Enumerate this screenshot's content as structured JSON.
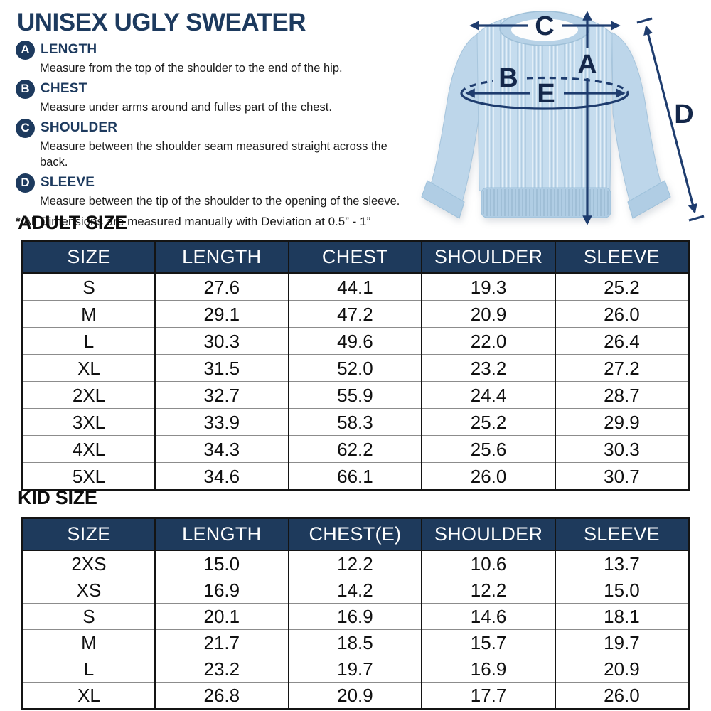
{
  "title": "UNISEX UGLY SWEATER",
  "colors": {
    "navy_accent": "#1d3a5e",
    "table_header_bg": "#1e3a5c",
    "table_border": "#141414",
    "row_divider": "#8c8c8c",
    "sweater_blue": "#c5dcee",
    "sweater_band_blue": "#b0cde4",
    "arrow_navy": "#1e3c6e"
  },
  "legend": {
    "items": [
      {
        "key": "A",
        "label": "LENGTH",
        "desc": "Measure from the top of the shoulder to the end of the hip."
      },
      {
        "key": "B",
        "label": "CHEST",
        "desc": "Measure under arms around and fulles part of the chest."
      },
      {
        "key": "C",
        "label": "SHOULDER",
        "desc": "Measure between the shoulder seam measured straight across the back."
      },
      {
        "key": "D",
        "label": "SLEEVE",
        "desc": "Measure between the tip of the shoulder to the opening of the sleeve."
      }
    ],
    "note_star": "*",
    "note_text": "All Dimensions are measured manually with Deviation at 0.5” - 1”"
  },
  "diagram": {
    "label_a": "A",
    "label_b": "B",
    "label_c": "C",
    "label_d": "D",
    "label_e": "E"
  },
  "adult": {
    "heading": "ADULT SIZE",
    "columns": [
      "SIZE",
      "LENGTH",
      "CHEST",
      "SHOULDER",
      "SLEEVE"
    ],
    "rows": [
      [
        "S",
        "27.6",
        "44.1",
        "19.3",
        "25.2"
      ],
      [
        "M",
        "29.1",
        "47.2",
        "20.9",
        "26.0"
      ],
      [
        "L",
        "30.3",
        "49.6",
        "22.0",
        "26.4"
      ],
      [
        "XL",
        "31.5",
        "52.0",
        "23.2",
        "27.2"
      ],
      [
        "2XL",
        "32.7",
        "55.9",
        "24.4",
        "28.7"
      ],
      [
        "3XL",
        "33.9",
        "58.3",
        "25.2",
        "29.9"
      ],
      [
        "4XL",
        "34.3",
        "62.2",
        "25.6",
        "30.3"
      ],
      [
        "5XL",
        "34.6",
        "66.1",
        "26.0",
        "30.7"
      ]
    ]
  },
  "kid": {
    "heading": "KID SIZE",
    "columns": [
      "SIZE",
      "LENGTH",
      "CHEST(E)",
      "SHOULDER",
      "SLEEVE"
    ],
    "rows": [
      [
        "2XS",
        "15.0",
        "12.2",
        "10.6",
        "13.7"
      ],
      [
        "XS",
        "16.9",
        "14.2",
        "12.2",
        "15.0"
      ],
      [
        "S",
        "20.1",
        "16.9",
        "14.6",
        "18.1"
      ],
      [
        "M",
        "21.7",
        "18.5",
        "15.7",
        "19.7"
      ],
      [
        "L",
        "23.2",
        "19.7",
        "16.9",
        "20.9"
      ],
      [
        "XL",
        "26.8",
        "20.9",
        "17.7",
        "26.0"
      ]
    ]
  }
}
